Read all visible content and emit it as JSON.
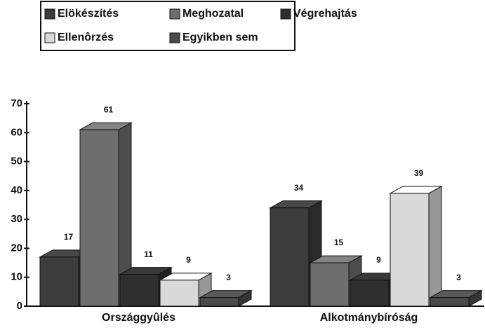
{
  "chart_data": {
    "type": "bar3d",
    "categories": [
      "Országgyûlés",
      "Alkotmánybíróság"
    ],
    "series": [
      {
        "name": "Elökészítés",
        "color": "#3c3c3c",
        "values": [
          17,
          34
        ]
      },
      {
        "name": "Meghozatal",
        "color": "#6e6e6e",
        "values": [
          61,
          15
        ]
      },
      {
        "name": "Végrehajtás",
        "color": "#2f2f2f",
        "values": [
          11,
          9
        ]
      },
      {
        "name": "Ellenôrzés",
        "color": "#d9d9d9",
        "values": [
          9,
          39
        ]
      },
      {
        "name": "Egyikben sem",
        "color": "#4a4a4a",
        "values": [
          3,
          3
        ]
      }
    ],
    "ylim": [
      0,
      70
    ],
    "yticks": [
      0,
      10,
      20,
      30,
      40,
      50,
      60,
      70
    ],
    "legend": "top"
  }
}
